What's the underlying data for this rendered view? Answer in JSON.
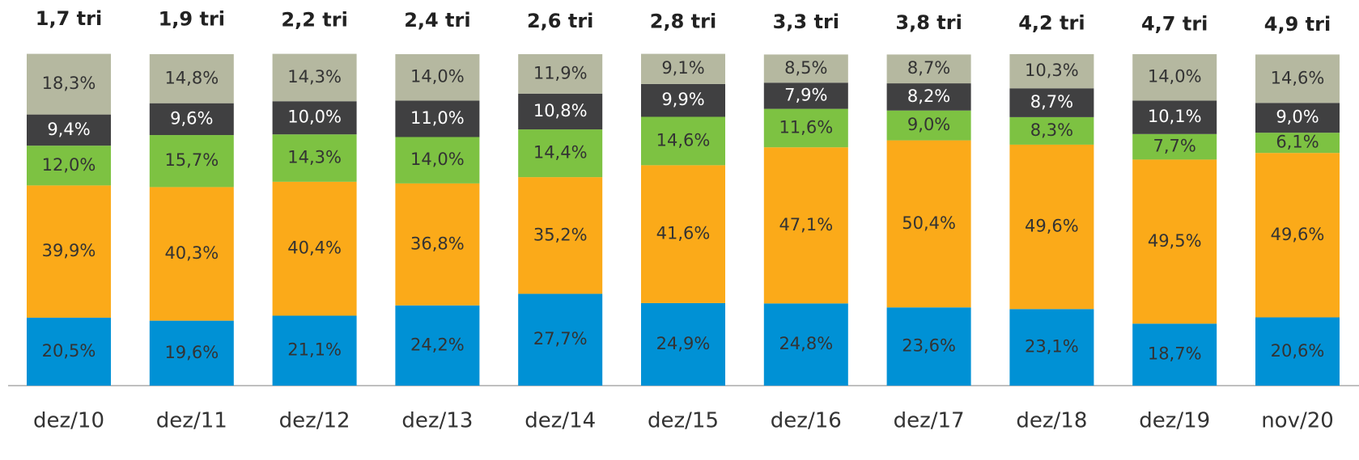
{
  "chart_data": {
    "type": "stacked_bar",
    "categories": [
      "dez/10",
      "dez/11",
      "dez/12",
      "dez/13",
      "dez/14",
      "dez/15",
      "dez/16",
      "dez/17",
      "dez/18",
      "dez/19",
      "nov/20"
    ],
    "annotations": [
      "1,7 tri",
      "1,9 tri",
      "2,2 tri",
      "2,4 tri",
      "2,6 tri",
      "2,8 tri",
      "3,3 tri",
      "3,8 tri",
      "4,2 tri",
      "4,7 tri",
      "4,9 tri"
    ],
    "ylim": [
      0,
      100
    ],
    "series": [
      {
        "color": "#0091d5",
        "values": [
          20.5,
          19.6,
          21.1,
          24.2,
          27.7,
          24.9,
          24.8,
          23.6,
          23.1,
          18.7,
          20.6
        ],
        "value_labels": [
          "20,5%",
          "19,6%",
          "21,1%",
          "24,2%",
          "27,7%",
          "24,9%",
          "24,8%",
          "23,6%",
          "23,1%",
          "18,7%",
          "20,6%"
        ]
      },
      {
        "color": "#fbaa19",
        "values": [
          39.9,
          40.3,
          40.4,
          36.8,
          35.2,
          41.6,
          47.1,
          50.4,
          49.6,
          49.5,
          49.6
        ],
        "value_labels": [
          "39,9%",
          "40,3%",
          "40,4%",
          "36,8%",
          "35,2%",
          "41,6%",
          "47,1%",
          "50,4%",
          "49,6%",
          "49,5%",
          "49,6%"
        ]
      },
      {
        "color": "#7dc242",
        "values": [
          12.0,
          15.7,
          14.3,
          14.0,
          14.4,
          14.6,
          11.6,
          9.0,
          8.3,
          7.7,
          6.1
        ],
        "value_labels": [
          "12,0%",
          "15,7%",
          "14,3%",
          "14,0%",
          "14,4%",
          "14,6%",
          "11,6%",
          "9,0%",
          "8,3%",
          "7,7%",
          "6,1%"
        ]
      },
      {
        "color": "#404041",
        "values": [
          9.4,
          9.6,
          10.0,
          11.0,
          10.8,
          9.9,
          7.9,
          8.2,
          8.7,
          10.1,
          9.0
        ],
        "value_labels": [
          "9,4%",
          "9,6%",
          "10,0%",
          "11,0%",
          "10,8%",
          "9,9%",
          "7,9%",
          "8,2%",
          "8,7%",
          "10,1%",
          "9,0%"
        ]
      },
      {
        "color": "#b5b8a0",
        "values": [
          18.3,
          14.8,
          14.3,
          14.0,
          11.9,
          9.1,
          8.5,
          8.7,
          10.3,
          14.0,
          14.6
        ],
        "value_labels": [
          "18,3%",
          "14,8%",
          "14,3%",
          "14,0%",
          "11,9%",
          "9,1%",
          "8,5%",
          "8,7%",
          "10,3%",
          "14,0%",
          "14,6%"
        ]
      }
    ]
  }
}
